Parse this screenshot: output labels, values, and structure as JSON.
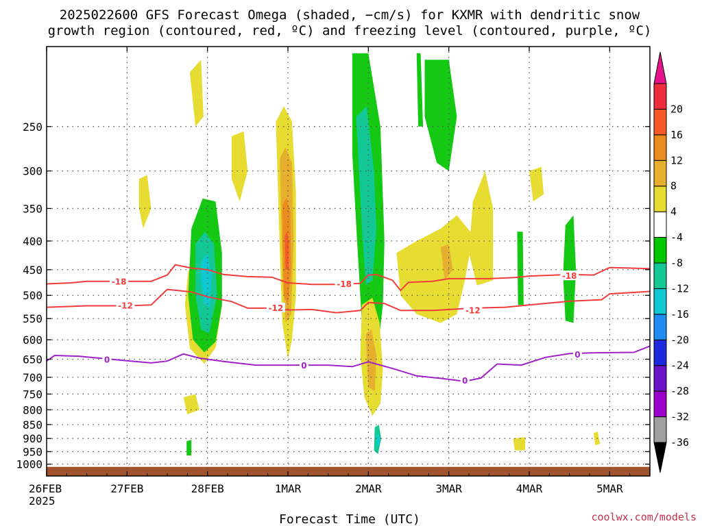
{
  "title_line1": "2025022600 GFS Forecast Omega (shaded, −cm/s) for KXMR with dendritic snow",
  "title_line2": "growth region (contoured, red, ºC) and freezing level (contoured, purple, ºC)",
  "xlabel": "Forecast Time (UTC)",
  "credit": "coolwx.com/models",
  "colors": {
    "dgz": "#f23c3c",
    "freezing": "#a020c8",
    "ground": "#a0522d",
    "grid": "#555555"
  },
  "chart_data": {
    "type": "heatmap",
    "time_axis": {
      "range_days": [
        0,
        7.5
      ],
      "ticks": [
        {
          "day": 0,
          "label": "26FEB",
          "sublabel": "2025"
        },
        {
          "day": 1,
          "label": "27FEB"
        },
        {
          "day": 2,
          "label": "28FEB"
        },
        {
          "day": 3,
          "label": "1MAR"
        },
        {
          "day": 4,
          "label": "2MAR"
        },
        {
          "day": 5,
          "label": "3MAR"
        },
        {
          "day": 6,
          "label": "4MAR"
        },
        {
          "day": 7,
          "label": "5MAR"
        }
      ]
    },
    "pressure_axis": {
      "range_hpa": [
        1050,
        180
      ],
      "ticks": [
        250,
        300,
        350,
        400,
        450,
        500,
        550,
        600,
        650,
        700,
        750,
        800,
        850,
        900,
        950,
        1000
      ]
    },
    "grid": true,
    "colorbar": {
      "levels": [
        "-36",
        "-32",
        "-28",
        "-24",
        "-20",
        "-16",
        "-12",
        "-8",
        "-4",
        "4",
        "8",
        "12",
        "16",
        "20"
      ],
      "bands": [
        "#000000",
        "#a0a0a0",
        "#9b00c8",
        "#6e14c8",
        "#1e28dc",
        "#1e8cf0",
        "#10c8d2",
        "#14c896",
        "#00c800",
        "#ffffff",
        "#e6dc32",
        "#e6af2d",
        "#ec8c1e",
        "#f55a28",
        "#f02d3c",
        "#e6148c"
      ]
    },
    "contours": [
      {
        "kind": "dgz",
        "label": "-18",
        "label_points": [
          [
            0.9,
            473
          ],
          [
            3.7,
            478
          ],
          [
            6.5,
            462
          ]
        ],
        "points": [
          [
            0,
            477
          ],
          [
            0.3,
            475
          ],
          [
            0.5,
            472
          ],
          [
            1.0,
            472
          ],
          [
            1.3,
            472
          ],
          [
            1.5,
            460
          ],
          [
            1.6,
            441
          ],
          [
            1.8,
            447
          ],
          [
            2.0,
            450
          ],
          [
            2.2,
            459
          ],
          [
            2.5,
            463
          ],
          [
            2.8,
            464
          ],
          [
            3.0,
            475
          ],
          [
            3.3,
            478
          ],
          [
            3.6,
            478
          ],
          [
            3.9,
            476
          ],
          [
            4.0,
            460
          ],
          [
            4.1,
            459
          ],
          [
            4.3,
            470
          ],
          [
            4.4,
            490
          ],
          [
            4.5,
            474
          ],
          [
            4.8,
            472
          ],
          [
            5.0,
            467
          ],
          [
            5.5,
            467
          ],
          [
            5.8,
            465
          ],
          [
            6.0,
            462
          ],
          [
            6.5,
            459
          ],
          [
            6.8,
            460
          ],
          [
            7.0,
            446
          ],
          [
            7.5,
            448
          ]
        ]
      },
      {
        "kind": "dgz",
        "label": "-12",
        "label_points": [
          [
            0.98,
            522
          ],
          [
            2.85,
            527
          ],
          [
            5.3,
            532
          ]
        ],
        "points": [
          [
            0,
            525
          ],
          [
            0.5,
            522
          ],
          [
            1.0,
            522
          ],
          [
            1.3,
            520
          ],
          [
            1.5,
            488
          ],
          [
            1.8,
            493
          ],
          [
            2.0,
            503
          ],
          [
            2.3,
            513
          ],
          [
            2.5,
            527
          ],
          [
            2.8,
            527
          ],
          [
            3.0,
            531
          ],
          [
            3.3,
            530
          ],
          [
            3.6,
            537
          ],
          [
            3.9,
            532
          ],
          [
            4.0,
            515
          ],
          [
            4.2,
            517
          ],
          [
            4.4,
            532
          ],
          [
            4.8,
            532
          ],
          [
            5.0,
            530
          ],
          [
            5.3,
            527
          ],
          [
            5.7,
            525
          ],
          [
            6.0,
            520
          ],
          [
            6.5,
            512
          ],
          [
            6.9,
            509
          ],
          [
            7.0,
            497
          ],
          [
            7.5,
            492
          ]
        ]
      },
      {
        "kind": "freezing",
        "label": "0",
        "label_points": [
          [
            0.75,
            652
          ],
          [
            3.2,
            668
          ],
          [
            5.2,
            710
          ],
          [
            6.6,
            638
          ]
        ],
        "points": [
          [
            0,
            655
          ],
          [
            0.1,
            640
          ],
          [
            0.4,
            642
          ],
          [
            1.0,
            654
          ],
          [
            1.3,
            660
          ],
          [
            1.5,
            655
          ],
          [
            1.7,
            636
          ],
          [
            1.9,
            647
          ],
          [
            2.2,
            656
          ],
          [
            2.6,
            666
          ],
          [
            3.0,
            666
          ],
          [
            3.5,
            666
          ],
          [
            3.8,
            670
          ],
          [
            4.0,
            657
          ],
          [
            4.3,
            675
          ],
          [
            4.6,
            696
          ],
          [
            4.9,
            703
          ],
          [
            5.2,
            712
          ],
          [
            5.4,
            702
          ],
          [
            5.6,
            663
          ],
          [
            5.9,
            666
          ],
          [
            6.2,
            645
          ],
          [
            6.5,
            635
          ],
          [
            6.8,
            633
          ],
          [
            7.3,
            632
          ],
          [
            7.5,
            616
          ]
        ]
      }
    ],
    "shaded_regions": [
      {
        "value": "4-8",
        "points": [
          [
            1.76,
            452
          ],
          [
            1.96,
            430
          ],
          [
            2.1,
            452
          ],
          [
            2.18,
            520
          ],
          [
            2.1,
            620
          ],
          [
            1.96,
            662
          ],
          [
            1.78,
            622
          ],
          [
            1.72,
            520
          ]
        ]
      },
      {
        "value": "-8 to -4",
        "points": [
          [
            1.8,
            380
          ],
          [
            1.94,
            336
          ],
          [
            2.1,
            340
          ],
          [
            2.18,
            420
          ],
          [
            2.18,
            520
          ],
          [
            2.1,
            605
          ],
          [
            1.96,
            632
          ],
          [
            1.82,
            600
          ],
          [
            1.76,
            500
          ]
        ]
      },
      {
        "value": "-12 to -8",
        "points": [
          [
            1.85,
            405
          ],
          [
            1.97,
            385
          ],
          [
            2.08,
            405
          ],
          [
            2.12,
            500
          ],
          [
            2.02,
            585
          ],
          [
            1.92,
            575
          ],
          [
            1.85,
            500
          ]
        ]
      },
      {
        "value": "-16 to -12",
        "points": [
          [
            1.92,
            435
          ],
          [
            2.0,
            422
          ],
          [
            2.05,
            460
          ],
          [
            2.03,
            525
          ],
          [
            1.96,
            518
          ],
          [
            1.92,
            470
          ]
        ]
      },
      {
        "value": "4-8",
        "points": [
          [
            2.85,
            245
          ],
          [
            2.95,
            230
          ],
          [
            3.05,
            245
          ],
          [
            3.1,
            330
          ],
          [
            3.1,
            500
          ],
          [
            3.05,
            600
          ],
          [
            3.0,
            650
          ],
          [
            2.93,
            560
          ],
          [
            2.9,
            420
          ]
        ]
      },
      {
        "value": "8-12",
        "points": [
          [
            2.9,
            285
          ],
          [
            2.97,
            272
          ],
          [
            3.05,
            290
          ],
          [
            3.07,
            400
          ],
          [
            3.04,
            540
          ],
          [
            2.97,
            560
          ],
          [
            2.93,
            460
          ]
        ]
      },
      {
        "value": "12-16",
        "points": [
          [
            2.93,
            345
          ],
          [
            2.98,
            335
          ],
          [
            3.03,
            355
          ],
          [
            3.04,
            450
          ],
          [
            3.0,
            520
          ],
          [
            2.95,
            500
          ],
          [
            2.94,
            420
          ]
        ]
      },
      {
        "value": "16-20",
        "points": [
          [
            2.96,
            392
          ],
          [
            2.99,
            385
          ],
          [
            3.01,
            400
          ],
          [
            3.01,
            450
          ],
          [
            2.97,
            450
          ]
        ]
      },
      {
        "value": "-8 to -4",
        "points": [
          [
            3.8,
            185
          ],
          [
            4.0,
            185
          ],
          [
            4.15,
            250
          ],
          [
            4.2,
            400
          ],
          [
            4.18,
            520
          ],
          [
            4.12,
            620
          ],
          [
            4.0,
            635
          ],
          [
            3.92,
            560
          ],
          [
            3.86,
            400
          ],
          [
            3.8,
            280
          ]
        ]
      },
      {
        "value": "-12 to -8",
        "points": [
          [
            3.85,
            240
          ],
          [
            3.98,
            230
          ],
          [
            4.07,
            300
          ],
          [
            4.1,
            380
          ],
          [
            4.05,
            470
          ],
          [
            3.97,
            480
          ],
          [
            3.92,
            380
          ]
        ]
      },
      {
        "value": "4-8",
        "points": [
          [
            3.92,
            520
          ],
          [
            4.05,
            505
          ],
          [
            4.14,
            560
          ],
          [
            4.18,
            680
          ],
          [
            4.15,
            780
          ],
          [
            4.05,
            820
          ],
          [
            3.95,
            760
          ],
          [
            3.9,
            640
          ]
        ]
      },
      {
        "value": "8-12",
        "points": [
          [
            3.97,
            585
          ],
          [
            4.04,
            575
          ],
          [
            4.1,
            640
          ],
          [
            4.08,
            740
          ],
          [
            4.0,
            730
          ],
          [
            3.98,
            650
          ]
        ]
      },
      {
        "value": "4-8",
        "points": [
          [
            4.35,
            420
          ],
          [
            4.6,
            400
          ],
          [
            4.9,
            380
          ],
          [
            5.1,
            360
          ],
          [
            5.3,
            390
          ],
          [
            5.2,
            470
          ],
          [
            5.1,
            540
          ],
          [
            4.9,
            560
          ],
          [
            4.6,
            540
          ],
          [
            4.4,
            500
          ]
        ]
      },
      {
        "value": "4-8",
        "points": [
          [
            5.3,
            340
          ],
          [
            5.45,
            300
          ],
          [
            5.55,
            350
          ],
          [
            5.55,
            470
          ],
          [
            5.35,
            480
          ],
          [
            5.25,
            420
          ]
        ]
      },
      {
        "value": "8-12",
        "points": [
          [
            4.9,
            410
          ],
          [
            5.0,
            405
          ],
          [
            5.05,
            450
          ],
          [
            4.95,
            470
          ]
        ]
      },
      {
        "value": "-8 to -4",
        "points": [
          [
            4.7,
            190
          ],
          [
            5.0,
            190
          ],
          [
            5.1,
            240
          ],
          [
            5.0,
            300
          ],
          [
            4.85,
            290
          ],
          [
            4.7,
            240
          ]
        ]
      },
      {
        "value": "-8 to -4",
        "points": [
          [
            6.45,
            375
          ],
          [
            6.55,
            360
          ],
          [
            6.58,
            450
          ],
          [
            6.55,
            560
          ],
          [
            6.45,
            555
          ],
          [
            6.42,
            460
          ]
        ]
      },
      {
        "value": "-12 to -8",
        "points": [
          [
            4.08,
            860
          ],
          [
            4.13,
            850
          ],
          [
            4.16,
            900
          ],
          [
            4.12,
            960
          ],
          [
            4.07,
            945
          ]
        ]
      },
      {
        "value": "-16 to -12",
        "points": [
          [
            4.1,
            890
          ],
          [
            4.13,
            885
          ],
          [
            4.14,
            920
          ],
          [
            4.11,
            935
          ]
        ]
      },
      {
        "value": "-8 to -4",
        "points": [
          [
            5.85,
            385
          ],
          [
            5.92,
            385
          ],
          [
            5.93,
            520
          ],
          [
            5.86,
            520
          ]
        ]
      },
      {
        "value": "-8 to -4",
        "points": [
          [
            4.6,
            185
          ],
          [
            4.65,
            185
          ],
          [
            4.68,
            250
          ],
          [
            4.62,
            250
          ]
        ]
      },
      {
        "value": "4-8",
        "points": [
          [
            1.15,
            310
          ],
          [
            1.25,
            305
          ],
          [
            1.3,
            350
          ],
          [
            1.2,
            380
          ],
          [
            1.15,
            350
          ]
        ]
      },
      {
        "value": "4-8",
        "points": [
          [
            2.3,
            260
          ],
          [
            2.45,
            255
          ],
          [
            2.5,
            300
          ],
          [
            2.4,
            340
          ],
          [
            2.3,
            310
          ]
        ]
      },
      {
        "value": "4-8",
        "points": [
          [
            1.78,
            200
          ],
          [
            1.92,
            190
          ],
          [
            1.95,
            240
          ],
          [
            1.85,
            250
          ]
        ]
      },
      {
        "value": "4-8",
        "points": [
          [
            6.0,
            300
          ],
          [
            6.15,
            295
          ],
          [
            6.18,
            330
          ],
          [
            6.05,
            340
          ]
        ]
      },
      {
        "value": "4-8",
        "points": [
          [
            1.7,
            760
          ],
          [
            1.85,
            750
          ],
          [
            1.9,
            800
          ],
          [
            1.75,
            815
          ]
        ]
      },
      {
        "value": "4-8",
        "points": [
          [
            6.8,
            880
          ],
          [
            6.85,
            875
          ],
          [
            6.88,
            920
          ],
          [
            6.82,
            925
          ]
        ]
      },
      {
        "value": "4-8",
        "points": [
          [
            5.8,
            900
          ],
          [
            5.95,
            895
          ],
          [
            5.95,
            945
          ],
          [
            5.82,
            945
          ]
        ]
      },
      {
        "value": "-8 to -4",
        "points": [
          [
            1.74,
            910
          ],
          [
            1.8,
            905
          ],
          [
            1.8,
            965
          ],
          [
            1.74,
            965
          ]
        ]
      }
    ]
  }
}
